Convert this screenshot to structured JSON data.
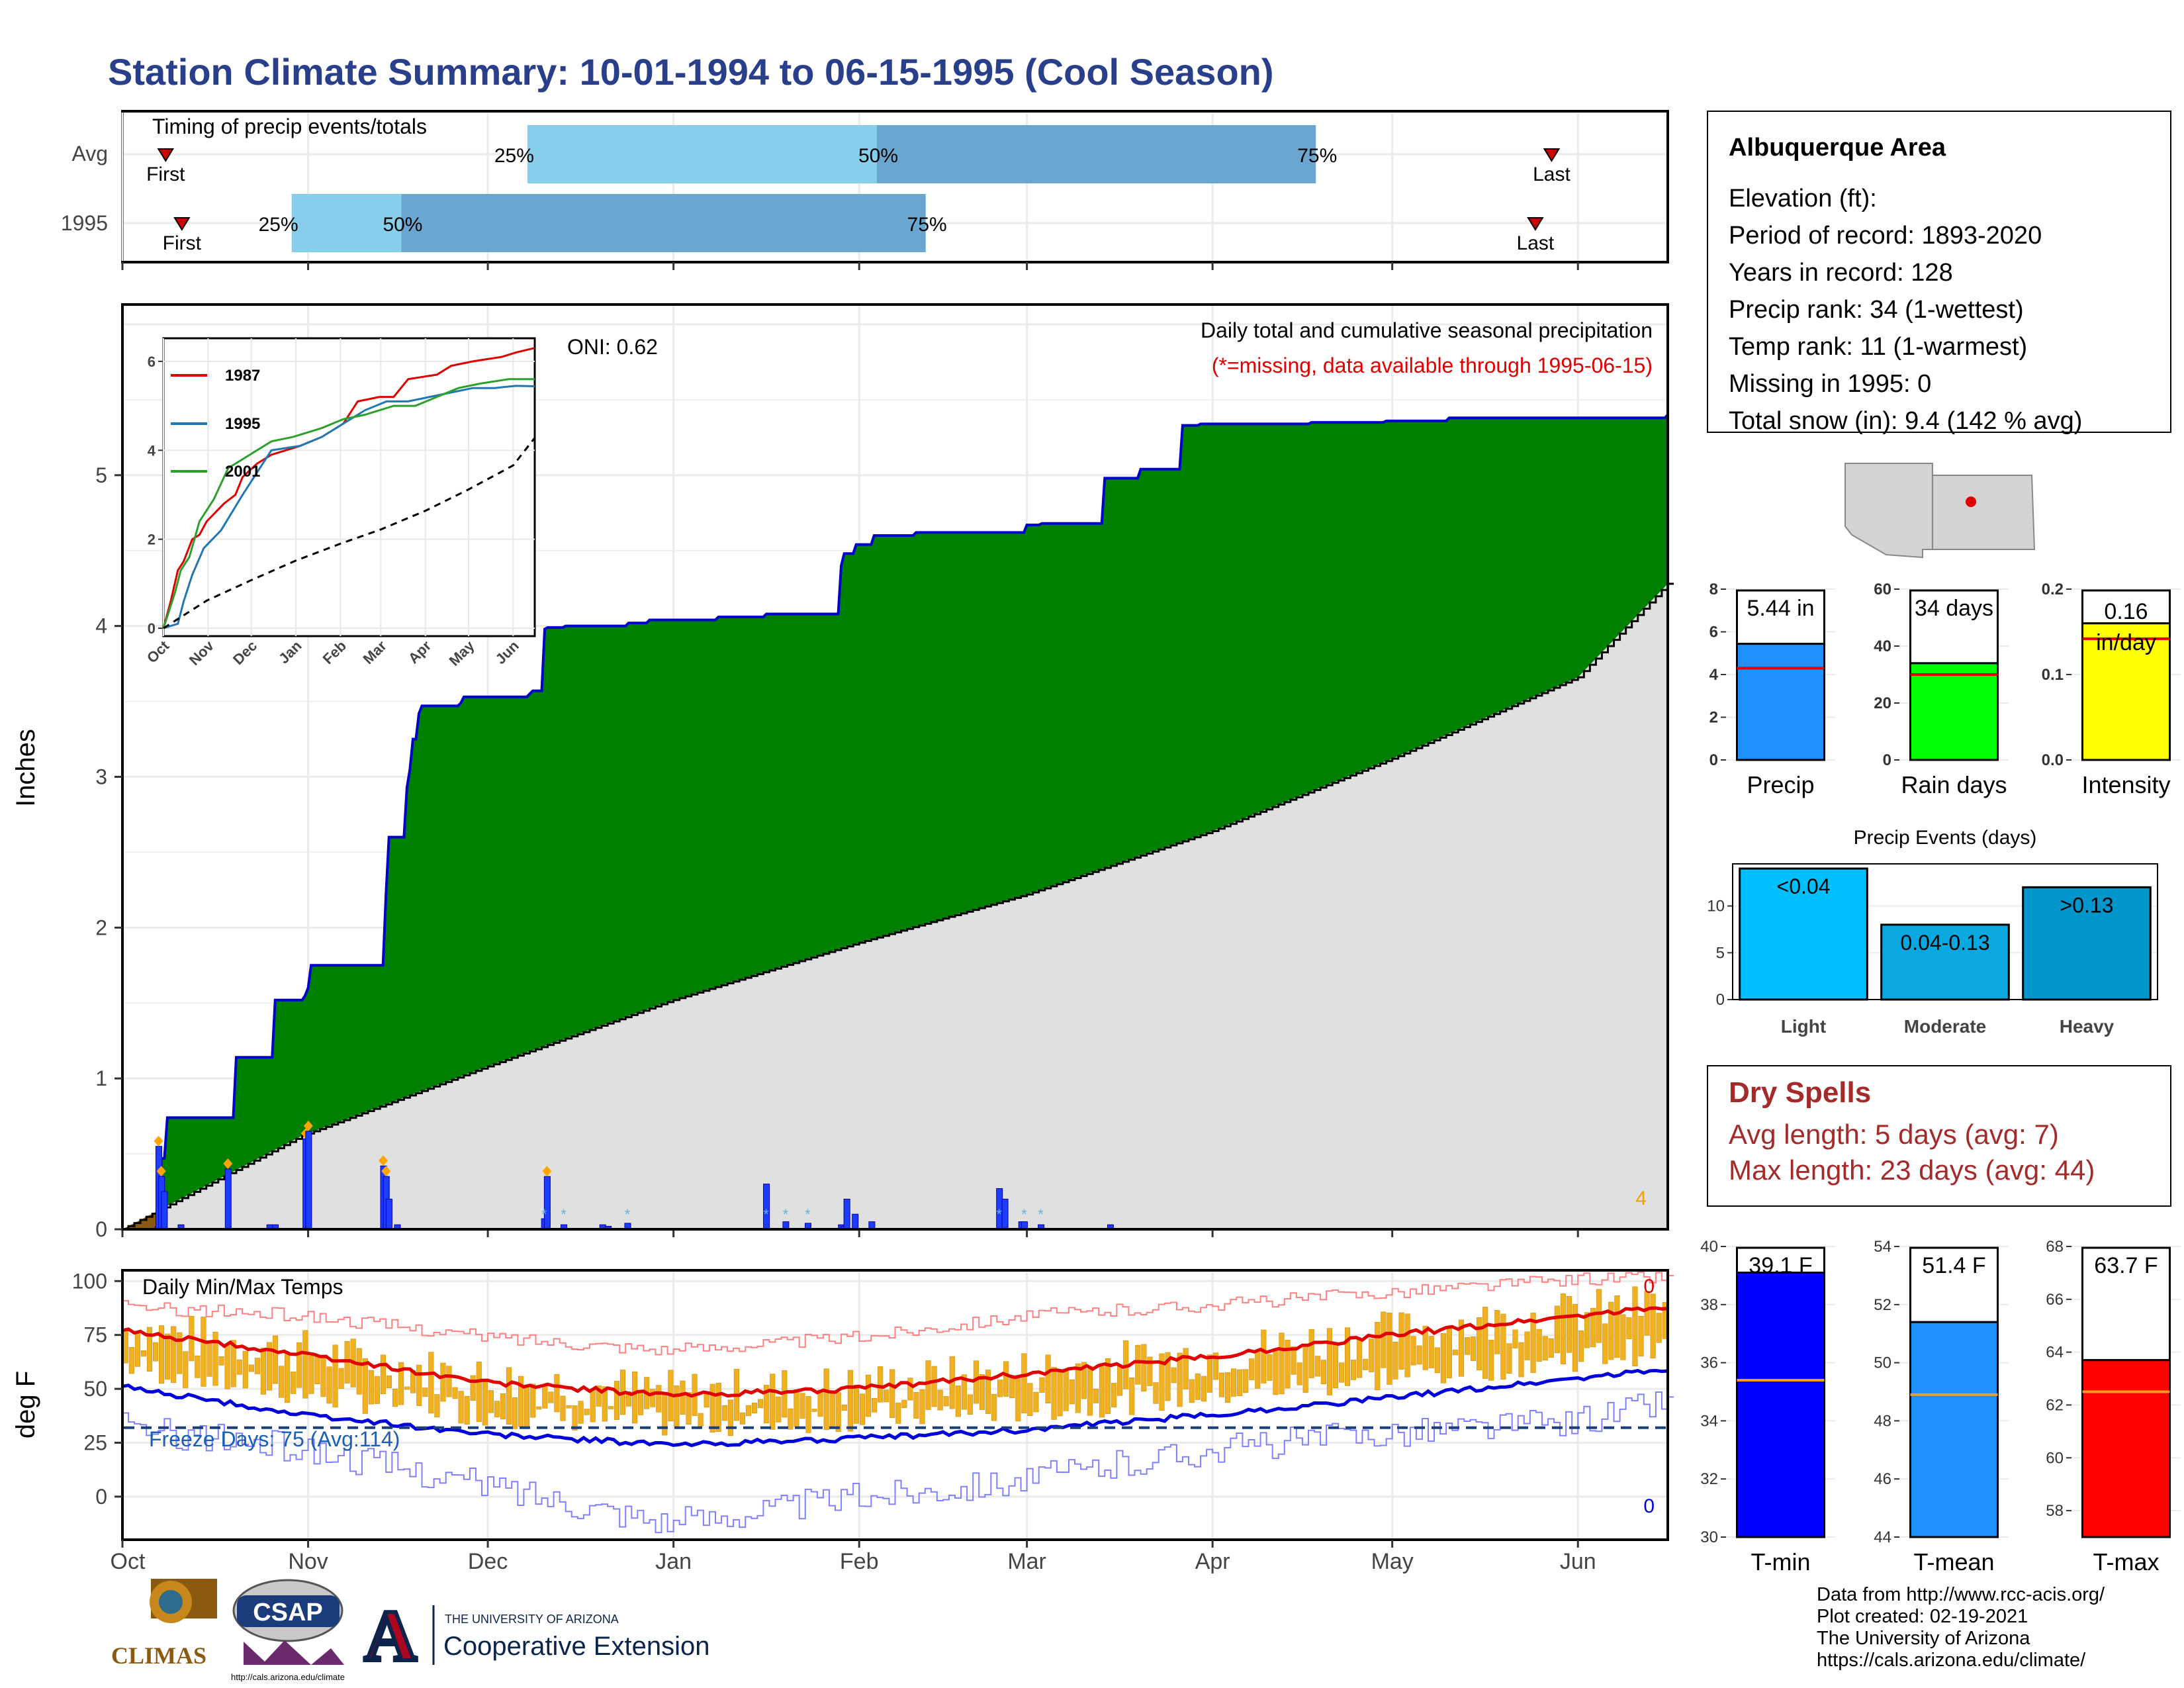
{
  "title": "Station Climate Summary: 10-01-1994 to 06-15-1995 (Cool Season)",
  "colors": {
    "title": "#2a3f8c",
    "green": "#008000",
    "blue_line": "#0000cc",
    "gray_fill": "#e0e0e0",
    "brown": "#8b5a10",
    "orange": "#f0b020",
    "red": "#e00000",
    "dry": "#a52a2a"
  },
  "timing": {
    "panel_title": "Timing of precip events/totals",
    "rows": [
      {
        "label": "Avg",
        "first_label": "First",
        "last_label": "Last",
        "p25": "25%",
        "p50": "50%",
        "p75": "75%",
        "first_day": 9,
        "p25_day": 98,
        "p50_day": 184,
        "p75_day": 292,
        "last_day": 350
      },
      {
        "label": "1995",
        "first_label": "First",
        "last_label": "Last",
        "p25": "25%",
        "p50": "50%",
        "p75": "75%",
        "first_day": 13,
        "p25_day": 40,
        "p50_day": 67,
        "p75_day": 196,
        "last_day": 346
      }
    ]
  },
  "precip_panel": {
    "ylabel": "Inches",
    "label_main": "Daily total and cumulative seasonal precipitation",
    "label_missing": "(*=missing, data available through 1995-06-15)",
    "oni": "ONI: 0.62",
    "snow_count": "4"
  },
  "chart_data": [
    {
      "type": "area",
      "title": "Daily total and cumulative seasonal precipitation",
      "ylabel": "Inches",
      "ylim": [
        0,
        6
      ],
      "x_ticks": [
        "Oct",
        "Nov",
        "Dec",
        "Jan",
        "Feb",
        "Mar",
        "Apr",
        "May",
        "Jun"
      ],
      "series": [
        {
          "name": "1995 cumulative",
          "x_day": [
            0,
            13,
            15,
            21,
            38,
            53,
            55,
            66,
            66,
            67,
            76,
            96,
            99,
            125,
            156,
            160,
            171,
            172,
            193,
            207,
            220,
            240,
            246,
            258,
            260,
            300,
            312,
            323,
            331,
            353,
            368,
            397,
            411,
            430,
            455,
            470,
            480,
            485,
            493,
            520,
            540,
            560,
            600,
            622,
            640,
            651,
            663,
            675,
            686,
            695,
            703,
            710,
            743
          ],
          "y": [
            0,
            0.05,
            0.4,
            0.42,
            0.48,
            0.53,
            0.55,
            1.12,
            1.12,
            1.12,
            1.12,
            1.12,
            1.12,
            1.12,
            1.55,
            1.55,
            1.57,
            1.59,
            1.59,
            1.59,
            1.59,
            2.22,
            2.22,
            2.92,
            2.92,
            3.38,
            3.46,
            3.46,
            3.46,
            3.46,
            3.46,
            3.52,
            3.97,
            3.97,
            4.01,
            4.05,
            4.05,
            4.05,
            4.06,
            4.14,
            4.14,
            4.14,
            4.17,
            4.19,
            4.19,
            4.2,
            4.54,
            4.55,
            4.58,
            4.58,
            4.62,
            4.62,
            4.62
          ]
        },
        {
          "name": "1995 cumulative (steps)",
          "x_day": [
            0,
            12,
            13,
            14,
            16,
            40,
            54,
            65,
            66,
            67,
            94,
            95,
            102,
            103,
            104,
            106,
            107,
            109,
            121,
            122,
            124,
            146,
            147,
            152,
            153,
            159,
            173,
            175,
            180,
            182,
            189,
            198,
            214,
            225,
            232,
            233,
            239,
            247,
            255,
            259,
            260,
            264,
            270,
            286,
            307,
            308,
            312,
            314,
            316,
            318,
            325,
            331,
            353,
            367,
            382,
            388,
            397,
            409,
            420,
            422,
            425,
            428,
            455,
            478,
            494,
            516,
            532,
            557
          ],
          "y": [
            0,
            0.05,
            0.33,
            0.47,
            0.74,
            1.14,
            1.52,
            1.55,
            1.6,
            1.75,
            2.22,
            2.6,
            2.93,
            3.05,
            3.25,
            3.42,
            3.47,
            3.47,
            3.49,
            3.53,
            3.53,
            3.55,
            3.57,
            3.98,
            3.99,
            4,
            4,
            4,
            4,
            4.02,
            4.04,
            4.04,
            4.06,
            4.06,
            4.08,
            4.08,
            4.08,
            4.08,
            4.08,
            4.4,
            4.48,
            4.54,
            4.6,
            4.62,
            4.62,
            4.62,
            4.62,
            4.62,
            4.62,
            4.62,
            4.67,
            4.68,
            4.98,
            5.04,
            5.33,
            5.34,
            5.34,
            5.34,
            5.34,
            5.34,
            5.34,
            5.35,
            5.36,
            5.38,
            5.38,
            5.38,
            5.38,
            5.4
          ]
        },
        {
          "name": "Avg cumulative",
          "x_day": [
            0,
            30,
            61,
            92,
            123,
            151,
            182,
            212,
            243,
            258
          ],
          "y": [
            0,
            0.62,
            1.08,
            1.52,
            1.9,
            2.22,
            2.64,
            3.12,
            3.66,
            4.28
          ]
        }
      ],
      "daily_bars": {
        "x_day": [
          13,
          14,
          15,
          21,
          38,
          53,
          55,
          66,
          67,
          94,
          95,
          96,
          99,
          152,
          153,
          159,
          173,
          175,
          182,
          232,
          239,
          247,
          259,
          260,
          261,
          264,
          270,
          316,
          318,
          324,
          325,
          331,
          356
        ],
        "y": [
          0.55,
          0.35,
          0.25,
          0.03,
          0.4,
          0.03,
          0.03,
          0.6,
          0.65,
          0.42,
          0.35,
          0.2,
          0.03,
          0.07,
          0.35,
          0.03,
          0.03,
          0.02,
          0.04,
          0.3,
          0.05,
          0.04,
          0.03,
          0.02,
          0.2,
          0.1,
          0.05,
          0.27,
          0.2,
          0.05,
          0.05,
          0.03,
          0.03
        ]
      }
    },
    {
      "type": "line",
      "title": "",
      "ylim": [
        0,
        6
      ],
      "x_ticks": [
        "Oct",
        "Nov",
        "Dec",
        "Jan",
        "Feb",
        "Mar",
        "Apr",
        "May",
        "Jun"
      ],
      "y_ticks": [
        0,
        2,
        4,
        6
      ],
      "series": [
        {
          "name": "1987",
          "color": "#e00000",
          "x_day": [
            0,
            5,
            10,
            14,
            20,
            25,
            30,
            42,
            50,
            55,
            65,
            75,
            95,
            110,
            125,
            135,
            150,
            160,
            170,
            190,
            200,
            215,
            235,
            245,
            258
          ],
          "y": [
            0,
            0.6,
            1.3,
            1.5,
            2.0,
            2.1,
            2.4,
            2.8,
            3.0,
            3.4,
            3.7,
            3.9,
            4.1,
            4.3,
            4.6,
            5.1,
            5.2,
            5.2,
            5.6,
            5.7,
            5.9,
            6.0,
            6.1,
            6.2,
            6.3
          ]
        },
        {
          "name": "1995",
          "color": "#1f77b4",
          "x_day": [
            0,
            10,
            14,
            20,
            28,
            40,
            55,
            65,
            75,
            95,
            110,
            125,
            140,
            155,
            170,
            185,
            200,
            215,
            230,
            245,
            258
          ],
          "y": [
            0,
            0.1,
            0.6,
            1.2,
            1.8,
            2.2,
            3.0,
            3.5,
            4.0,
            4.1,
            4.3,
            4.6,
            4.9,
            5.1,
            5.1,
            5.2,
            5.3,
            5.4,
            5.4,
            5.45,
            5.44
          ]
        },
        {
          "name": "2001",
          "color": "#2ca02c",
          "x_day": [
            0,
            8,
            12,
            18,
            25,
            35,
            45,
            60,
            75,
            90,
            110,
            125,
            140,
            160,
            175,
            190,
            205,
            220,
            240,
            258
          ],
          "y": [
            0,
            0.8,
            1.3,
            1.6,
            2.4,
            2.9,
            3.6,
            3.9,
            4.2,
            4.3,
            4.5,
            4.7,
            4.8,
            5.0,
            5.0,
            5.2,
            5.4,
            5.5,
            5.6,
            5.6
          ]
        },
        {
          "name": "Avg",
          "color": "#000000",
          "x_day": [
            0,
            30,
            61,
            92,
            123,
            151,
            182,
            212,
            243,
            258
          ],
          "y": [
            0,
            0.62,
            1.08,
            1.52,
            1.9,
            2.22,
            2.64,
            3.12,
            3.66,
            4.28
          ]
        }
      ],
      "x_tick_labels": [
        "Oct",
        "Nov",
        "Dec",
        "Jan",
        "Feb",
        "Mar",
        "Apr",
        "May",
        "Jun"
      ]
    },
    {
      "type": "bar",
      "title": "",
      "categories": [
        "Precip"
      ],
      "values": [
        5.44
      ],
      "avg": 4.3,
      "ylim": [
        0,
        8
      ],
      "y_ticks": [
        0,
        2,
        4,
        6,
        8
      ],
      "label": "5.44 in",
      "color": "#1e90ff"
    },
    {
      "type": "bar",
      "title": "",
      "categories": [
        "Rain days"
      ],
      "values": [
        34
      ],
      "avg": 30,
      "ylim": [
        0,
        60
      ],
      "y_ticks": [
        0,
        20,
        40,
        60
      ],
      "label": "34 days",
      "color": "#00ff00"
    },
    {
      "type": "bar",
      "title": "",
      "categories": [
        "Intensity"
      ],
      "values": [
        0.16
      ],
      "avg": 0.142,
      "ylim": [
        0,
        0.2
      ],
      "y_ticks": [
        "0.0",
        "0.1",
        "0.2"
      ],
      "label_1": "0.16",
      "label_2": "in/day",
      "color": "#ffff00"
    },
    {
      "type": "bar",
      "title": "Precip Events (days)",
      "categories": [
        "Light",
        "Moderate",
        "Heavy"
      ],
      "values": [
        14,
        8,
        12
      ],
      "bar_labels": [
        "<0.04",
        "0.04-0.13",
        ">0.13"
      ],
      "ylim": [
        0,
        14.5
      ],
      "y_ticks": [
        0,
        5,
        10
      ],
      "colors": [
        "#00bfff",
        "#0aa8e0",
        "#0096cc"
      ]
    },
    {
      "type": "line",
      "title": "Daily Min/Max Temps",
      "ylabel": "deg F",
      "ylim": [
        -20,
        105
      ],
      "y_ticks": [
        0,
        25,
        50,
        75,
        100
      ],
      "x_ticks": [
        "Oct",
        "Nov",
        "Dec",
        "Jan",
        "Feb",
        "Mar",
        "Apr",
        "May",
        "Jun"
      ],
      "freeze_line": 32,
      "freeze_label": "Freeze Days: 75 (Avg:114)",
      "count_top": "0",
      "count_bottom": "0",
      "series": [
        {
          "name": "Avg max",
          "color": "#e00000",
          "x_day": [
            0,
            30,
            61,
            92,
            123,
            151,
            182,
            212,
            243,
            258
          ],
          "y": [
            77,
            66,
            53,
            47,
            50,
            57,
            65,
            75,
            84,
            88
          ]
        },
        {
          "name": "Avg min",
          "color": "#0000dd",
          "x_day": [
            0,
            30,
            61,
            92,
            123,
            151,
            182,
            212,
            243,
            258
          ],
          "y": [
            51,
            38,
            29,
            24,
            27,
            31,
            38,
            46,
            55,
            59
          ]
        },
        {
          "name": "Record max",
          "color": "#ff8080",
          "x_day": [
            0,
            30,
            61,
            92,
            123,
            151,
            182,
            212,
            243,
            258
          ],
          "y": [
            88,
            84,
            74,
            68,
            74,
            84,
            89,
            95,
            101,
            102
          ]
        },
        {
          "name": "Record min",
          "color": "#8080ff",
          "x_day": [
            0,
            30,
            61,
            92,
            123,
            151,
            182,
            212,
            243,
            258
          ],
          "y": [
            32,
            22,
            5,
            -12,
            0,
            8,
            22,
            30,
            35,
            45
          ]
        }
      ]
    },
    {
      "type": "bar",
      "title": "",
      "categories": [
        "T-min"
      ],
      "values": [
        39.1
      ],
      "avg": 35.4,
      "ylim": [
        30,
        40
      ],
      "y_ticks": [
        30,
        32,
        34,
        36,
        38,
        40
      ],
      "label": "39.1 F",
      "color": "#0000ff"
    },
    {
      "type": "bar",
      "title": "",
      "categories": [
        "T-mean"
      ],
      "values": [
        51.4
      ],
      "avg": 48.9,
      "ylim": [
        44,
        54
      ],
      "y_ticks": [
        44,
        46,
        48,
        50,
        52,
        54
      ],
      "label": "51.4 F",
      "color": "#1e90ff"
    },
    {
      "type": "bar",
      "title": "",
      "categories": [
        "T-max"
      ],
      "values": [
        63.7
      ],
      "avg": 62.5,
      "ylim": [
        57,
        68
      ],
      "y_ticks": [
        58,
        60,
        62,
        64,
        66,
        68
      ],
      "label": "63.7 F",
      "color": "#ff0000"
    }
  ],
  "info": {
    "title": "Albuquerque Area",
    "lines": [
      "Elevation (ft):",
      "Period of record: 1893-2020",
      "Years in record: 128",
      "Precip rank: 34 (1-wettest)",
      "Temp rank: 11 (1-warmest)",
      "Missing in 1995: 0",
      "Total snow (in): 9.4 (142 % avg)"
    ]
  },
  "dry": {
    "title": "Dry Spells",
    "line1": "Avg length: 5 days (avg: 7)",
    "line2": "Max length: 23 days (avg: 44)"
  },
  "credits": {
    "lines": [
      "Data from http://www.rcc-acis.org/",
      "Plot created: 02-19-2021",
      "The University of Arizona",
      "https://cals.arizona.edu/climate/"
    ]
  },
  "logos": {
    "climas": "CLIMAS",
    "csap": "CSAP",
    "csap_url": "http://cals.arizona.edu/climate",
    "ua_small": "THE UNIVERSITY OF ARIZONA",
    "ua_big": "Cooperative Extension",
    "ua_letter": "A"
  }
}
